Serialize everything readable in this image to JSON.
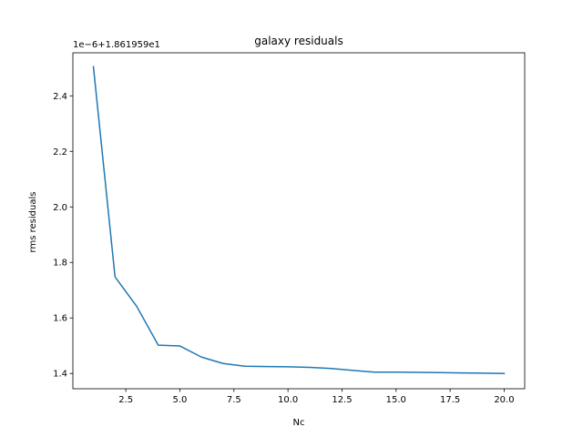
{
  "chart_data": {
    "type": "line",
    "title": "galaxy residuals",
    "xlabel": "Nc",
    "ylabel": "rms residuals",
    "offset_text": "1e−6+1.861959e1",
    "xlim": [
      0.05,
      20.95
    ],
    "ylim": [
      1.345,
      2.555
    ],
    "xticks": [
      2.5,
      5.0,
      7.5,
      10.0,
      12.5,
      15.0,
      17.5,
      20.0
    ],
    "xtick_labels": [
      "2.5",
      "5.0",
      "7.5",
      "10.0",
      "12.5",
      "15.0",
      "17.5",
      "20.0"
    ],
    "yticks": [
      1.4,
      1.6,
      1.8,
      2.0,
      2.2,
      2.4
    ],
    "ytick_labels": [
      "1.4",
      "1.6",
      "1.8",
      "2.0",
      "2.2",
      "2.4"
    ],
    "grid": false,
    "series": [
      {
        "color": "#1f77b4",
        "x": [
          1,
          2,
          3,
          4,
          5,
          6,
          7,
          8,
          9,
          10,
          11,
          12,
          13,
          14,
          15,
          16,
          17,
          18,
          19,
          20
        ],
        "y": [
          2.505,
          1.748,
          1.642,
          1.502,
          1.499,
          1.459,
          1.436,
          1.426,
          1.425,
          1.424,
          1.422,
          1.418,
          1.411,
          1.405,
          1.405,
          1.404,
          1.403,
          1.402,
          1.401,
          1.4
        ]
      }
    ]
  }
}
